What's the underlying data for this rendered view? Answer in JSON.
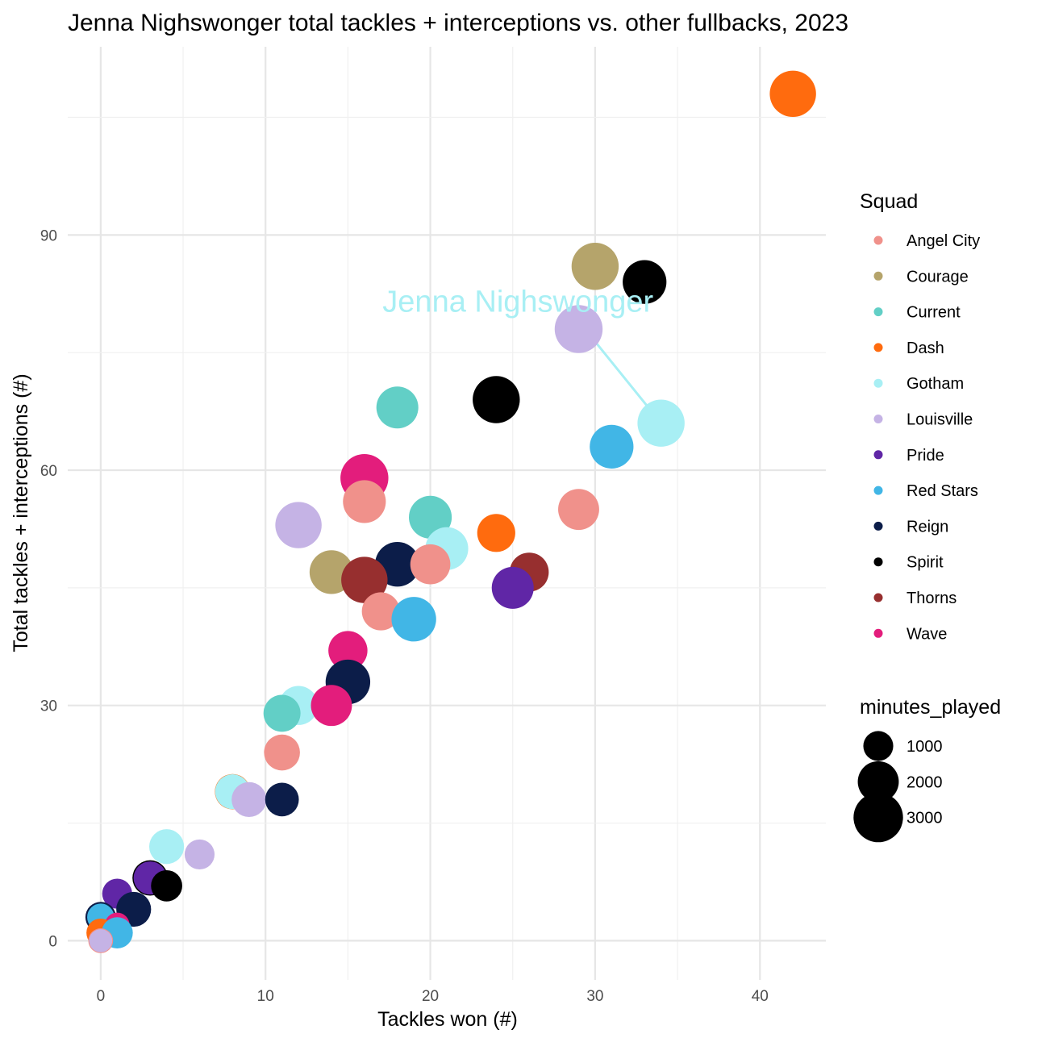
{
  "chart_data": {
    "type": "scatter",
    "title": "Jenna Nighswonger total tackles + interceptions vs. other fullbacks, 2023",
    "xlabel": "Tackles won (#)",
    "ylabel": "Total tackles + interceptions (#)",
    "xlim": [
      -2,
      44
    ],
    "ylim": [
      -5,
      114
    ],
    "x_ticks": [
      0,
      10,
      20,
      30,
      40
    ],
    "x_tick_labels": [
      "0",
      "10",
      "20",
      "30",
      "40"
    ],
    "y_ticks": [
      0,
      30,
      60,
      90
    ],
    "y_tick_labels": [
      "0",
      "30",
      "60",
      "90"
    ],
    "grid": true,
    "color_legend": {
      "title": "Squad",
      "position": "right",
      "items": [
        {
          "label": "Angel City",
          "color": "#F0918B"
        },
        {
          "label": "Courage",
          "color": "#B5A46B"
        },
        {
          "label": "Current",
          "color": "#62CFC6"
        },
        {
          "label": "Dash",
          "color": "#FF6B0E"
        },
        {
          "label": "Gotham",
          "color": "#A8EFF4"
        },
        {
          "label": "Louisville",
          "color": "#C5B3E5"
        },
        {
          "label": "Pride",
          "color": "#6026A6"
        },
        {
          "label": "Red Stars",
          "color": "#41B6E6"
        },
        {
          "label": "Reign",
          "color": "#0C1D49"
        },
        {
          "label": "Spirit",
          "color": "#000000"
        },
        {
          "label": "Thorns",
          "color": "#972F2F"
        },
        {
          "label": "Wave",
          "color": "#E31D7C"
        }
      ]
    },
    "size_legend": {
      "title": "minutes_played",
      "position": "right",
      "items": [
        {
          "label": "1000",
          "value": 1000
        },
        {
          "label": "2000",
          "value": 2000
        },
        {
          "label": "3000",
          "value": 3000
        }
      ]
    },
    "annotation": {
      "text": "Jenna Nighswonger",
      "color": "#A8EFF4",
      "label_at": [
        17.1,
        80.2
      ],
      "from": [
        29,
        79
      ],
      "to": [
        34,
        66
      ]
    },
    "points": [
      {
        "x": 42,
        "y": 108,
        "squad": "Dash",
        "minutes": 2600
      },
      {
        "x": 30,
        "y": 86,
        "squad": "Courage",
        "minutes": 2700
      },
      {
        "x": 33,
        "y": 84,
        "squad": "Spirit",
        "minutes": 2300
      },
      {
        "x": 29,
        "y": 78,
        "squad": "Louisville",
        "minutes": 2800
      },
      {
        "x": 24,
        "y": 69,
        "squad": "Spirit",
        "minutes": 2700
      },
      {
        "x": 34,
        "y": 66,
        "squad": "Gotham",
        "minutes": 2700
      },
      {
        "x": 18,
        "y": 68,
        "squad": "Current",
        "minutes": 2100
      },
      {
        "x": 31,
        "y": 63,
        "squad": "Red Stars",
        "minutes": 2300
      },
      {
        "x": 16,
        "y": 59,
        "squad": "Wave",
        "minutes": 2800
      },
      {
        "x": 16,
        "y": 56,
        "squad": "Angel City",
        "minutes": 2200
      },
      {
        "x": 29,
        "y": 55,
        "squad": "Angel City",
        "minutes": 2000
      },
      {
        "x": 20,
        "y": 54,
        "squad": "Current",
        "minutes": 2200
      },
      {
        "x": 12,
        "y": 53,
        "squad": "Louisville",
        "minutes": 2600
      },
      {
        "x": 24,
        "y": 52,
        "squad": "Dash",
        "minutes": 1700
      },
      {
        "x": 21,
        "y": 50,
        "squad": "Gotham",
        "minutes": 2200
      },
      {
        "x": 18,
        "y": 48,
        "squad": "Reign",
        "minutes": 2400
      },
      {
        "x": 20,
        "y": 48,
        "squad": "Angel City",
        "minutes": 1900
      },
      {
        "x": 14,
        "y": 47,
        "squad": "Courage",
        "minutes": 2300
      },
      {
        "x": 26,
        "y": 47,
        "squad": "Thorns",
        "minutes": 1800
      },
      {
        "x": 16,
        "y": 46,
        "squad": "Thorns",
        "minutes": 2600
      },
      {
        "x": 25,
        "y": 45,
        "squad": "Pride",
        "minutes": 2100
      },
      {
        "x": 17,
        "y": 42,
        "squad": "Angel City",
        "minutes": 1700
      },
      {
        "x": 19,
        "y": 41,
        "squad": "Red Stars",
        "minutes": 2400
      },
      {
        "x": 15,
        "y": 37,
        "squad": "Wave",
        "minutes": 1800
      },
      {
        "x": 15,
        "y": 33,
        "squad": "Reign",
        "minutes": 2400
      },
      {
        "x": 12,
        "y": 30,
        "squad": "Gotham",
        "minutes": 1800
      },
      {
        "x": 14,
        "y": 30,
        "squad": "Wave",
        "minutes": 2000
      },
      {
        "x": 11,
        "y": 29,
        "squad": "Current",
        "minutes": 1600
      },
      {
        "x": 11,
        "y": 24,
        "squad": "Angel City",
        "minutes": 1500
      },
      {
        "x": 8,
        "y": 19,
        "squad": "Dash",
        "minutes": 1450
      },
      {
        "x": 8,
        "y": 19,
        "squad": "Gotham",
        "minutes": 1400
      },
      {
        "x": 9,
        "y": 18,
        "squad": "Louisville",
        "minutes": 1400
      },
      {
        "x": 11,
        "y": 18,
        "squad": "Reign",
        "minutes": 1300
      },
      {
        "x": 4,
        "y": 12,
        "squad": "Gotham",
        "minutes": 1400
      },
      {
        "x": 6,
        "y": 11,
        "squad": "Louisville",
        "minutes": 1000
      },
      {
        "x": 3,
        "y": 8,
        "squad": "Spirit",
        "minutes": 1450
      },
      {
        "x": 3,
        "y": 8,
        "squad": "Pride",
        "minutes": 1250
      },
      {
        "x": 4,
        "y": 7,
        "squad": "Spirit",
        "minutes": 1100
      },
      {
        "x": 1,
        "y": 6,
        "squad": "Pride",
        "minutes": 1000
      },
      {
        "x": 2,
        "y": 4,
        "squad": "Reign",
        "minutes": 1400
      },
      {
        "x": 0,
        "y": 3,
        "squad": "Reign",
        "minutes": 1050
      },
      {
        "x": 0,
        "y": 3,
        "squad": "Red Stars",
        "minutes": 800
      },
      {
        "x": 1,
        "y": 2,
        "squad": "Wave",
        "minutes": 650
      },
      {
        "x": 0,
        "y": 1,
        "squad": "Dash",
        "minutes": 900
      },
      {
        "x": 1,
        "y": 1,
        "squad": "Red Stars",
        "minutes": 1100
      },
      {
        "x": 0,
        "y": 0,
        "squad": "Angel City",
        "minutes": 650
      },
      {
        "x": 0,
        "y": 0,
        "squad": "Louisville",
        "minutes": 550
      }
    ]
  }
}
